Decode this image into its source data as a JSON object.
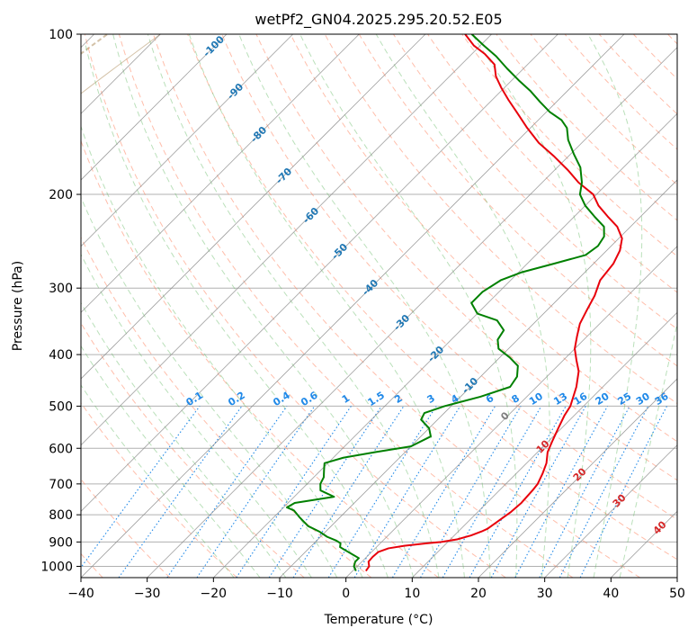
{
  "chart_data": {
    "type": "line",
    "title": "wetPf2_GN04.2025.295.20.52.E05",
    "xlabel": "Temperature (°C)",
    "ylabel": "Pressure (hPa)",
    "xlim": [
      -40,
      50
    ],
    "ylim": [
      1050,
      100
    ],
    "yscale": "log",
    "skew": "Skew-T log-P diagram",
    "grid": true,
    "x_ticks": [
      "−40",
      "−30",
      "−20",
      "−10",
      "0",
      "10",
      "20",
      "30",
      "40",
      "50"
    ],
    "y_ticks": [
      "100",
      "200",
      "300",
      "400",
      "500",
      "600",
      "700",
      "800",
      "900",
      "1000"
    ],
    "series": [
      {
        "key": "temperature",
        "color": "#e8000b",
        "points": [
          [
            2.0,
            1020
          ],
          [
            1.8,
            1000
          ],
          [
            1.0,
            980
          ],
          [
            0.9,
            960
          ],
          [
            1.0,
            940
          ],
          [
            2.0,
            925
          ],
          [
            4.0,
            915
          ],
          [
            7.0,
            905
          ],
          [
            9.0,
            900
          ],
          [
            11.0,
            890
          ],
          [
            12.5,
            875
          ],
          [
            13.5,
            860
          ],
          [
            14.0,
            850
          ],
          [
            14.5,
            820
          ],
          [
            15.0,
            790
          ],
          [
            15.2,
            760
          ],
          [
            15.0,
            720
          ],
          [
            14.8,
            700
          ],
          [
            14.0,
            670
          ],
          [
            13.0,
            640
          ],
          [
            11.5,
            610
          ],
          [
            10.5,
            580
          ],
          [
            9.5,
            550
          ],
          [
            8.5,
            520
          ],
          [
            8.0,
            500
          ],
          [
            6.0,
            460
          ],
          [
            4.0,
            430
          ],
          [
            2.0,
            410
          ],
          [
            0.0,
            390
          ],
          [
            -1.5,
            370
          ],
          [
            -3.0,
            350
          ],
          [
            -4.0,
            330
          ],
          [
            -5.0,
            310
          ],
          [
            -6.5,
            290
          ],
          [
            -7.0,
            270
          ],
          [
            -8.0,
            255
          ],
          [
            -9.5,
            242
          ],
          [
            -12.0,
            230
          ],
          [
            -15.0,
            220
          ],
          [
            -18.0,
            210
          ],
          [
            -20.5,
            200
          ],
          [
            -24.5,
            190
          ],
          [
            -28.0,
            180
          ],
          [
            -32.0,
            170
          ],
          [
            -36.5,
            160
          ],
          [
            -40.5,
            150
          ],
          [
            -44.5,
            140
          ],
          [
            -47.5,
            133
          ],
          [
            -50.5,
            126
          ],
          [
            -53.0,
            120
          ],
          [
            -55.0,
            114
          ],
          [
            -58.0,
            109
          ],
          [
            -61.0,
            105
          ],
          [
            -64.0,
            100
          ]
        ]
      },
      {
        "key": "dewpoint",
        "color": "#008000",
        "points": [
          [
            0.5,
            1020
          ],
          [
            -0.5,
            1000
          ],
          [
            -1.0,
            980
          ],
          [
            -1.0,
            965
          ],
          [
            -2.5,
            950
          ],
          [
            -4.0,
            935
          ],
          [
            -5.5,
            920
          ],
          [
            -6.0,
            905
          ],
          [
            -7.0,
            895
          ],
          [
            -9.0,
            880
          ],
          [
            -11.0,
            860
          ],
          [
            -13.5,
            840
          ],
          [
            -16.0,
            810
          ],
          [
            -18.0,
            785
          ],
          [
            -19.5,
            775
          ],
          [
            -19.0,
            760
          ],
          [
            -14.0,
            740
          ],
          [
            -17.0,
            720
          ],
          [
            -18.0,
            700
          ],
          [
            -18.5,
            680
          ],
          [
            -19.5,
            660
          ],
          [
            -20.5,
            640
          ],
          [
            -18.5,
            625
          ],
          [
            -14.5,
            610
          ],
          [
            -10.0,
            595
          ],
          [
            -8.5,
            570
          ],
          [
            -10.0,
            550
          ],
          [
            -12.5,
            530
          ],
          [
            -13.0,
            515
          ],
          [
            -11.0,
            500
          ],
          [
            -7.0,
            480
          ],
          [
            -4.0,
            460
          ],
          [
            -4.5,
            440
          ],
          [
            -6.0,
            420
          ],
          [
            -8.5,
            405
          ],
          [
            -11.5,
            390
          ],
          [
            -13.0,
            375
          ],
          [
            -13.5,
            360
          ],
          [
            -16.0,
            345
          ],
          [
            -20.0,
            335
          ],
          [
            -22.5,
            320
          ],
          [
            -22.5,
            305
          ],
          [
            -21.5,
            290
          ],
          [
            -19.5,
            280
          ],
          [
            -16.0,
            270
          ],
          [
            -12.5,
            260
          ],
          [
            -12.0,
            250
          ],
          [
            -12.5,
            240
          ],
          [
            -14.0,
            230
          ],
          [
            -17.0,
            220
          ],
          [
            -20.0,
            210
          ],
          [
            -22.5,
            200
          ],
          [
            -24.0,
            190
          ],
          [
            -26.5,
            178
          ],
          [
            -29.5,
            168
          ],
          [
            -32.5,
            158
          ],
          [
            -34.5,
            150
          ],
          [
            -36.5,
            145
          ],
          [
            -39.5,
            140
          ],
          [
            -42.5,
            134
          ],
          [
            -45.5,
            128
          ],
          [
            -49.0,
            122
          ],
          [
            -52.5,
            116
          ],
          [
            -56.0,
            110
          ],
          [
            -59.5,
            105
          ],
          [
            -63.0,
            100
          ]
        ]
      }
    ],
    "isotherm_labels": [
      "-100",
      "-90",
      "-80",
      "-70",
      "-60",
      "-50",
      "-40",
      "-30",
      "-20",
      "-10",
      "0",
      "10",
      "20",
      "30",
      "40"
    ],
    "mixing_ratio_labels": [
      "0.1",
      "0.2",
      "0.4",
      "0.6",
      "1",
      "1.5",
      "2",
      "3",
      "4",
      "6",
      "8",
      "10",
      "13",
      "16",
      "20",
      "25",
      "30",
      "36"
    ],
    "isotherm_label_colors": {
      "cold": "#1f77b4",
      "zero": "#7f7f7f",
      "warm": "#d62728"
    },
    "mixing_ratio_label_color": "#2089e8",
    "dry_adiabat_color": "#ff8866",
    "moist_adiabat_color": "#66bb66",
    "mixing_ratio_line_color": "#2089e8",
    "isotherm_color": "#888888",
    "special_curve_color": "#b89a6e"
  }
}
